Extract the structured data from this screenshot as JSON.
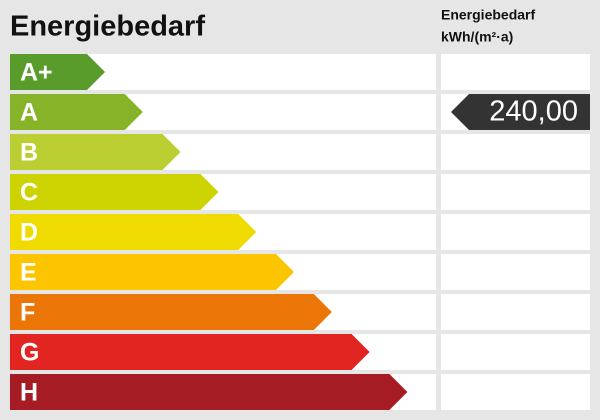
{
  "header": {
    "title": "Energiebedarf",
    "column_title": "Energiebedarf",
    "unit": "kWh/(m²·a)"
  },
  "classes": [
    {
      "label": "A+",
      "color": "#5a9c2c"
    },
    {
      "label": "A",
      "color": "#86b327",
      "value": "240,00"
    },
    {
      "label": "B",
      "color": "#bbcf33"
    },
    {
      "label": "C",
      "color": "#ccd300"
    },
    {
      "label": "D",
      "color": "#f0db00"
    },
    {
      "label": "E",
      "color": "#fcc500"
    },
    {
      "label": "F",
      "color": "#ec7508"
    },
    {
      "label": "G",
      "color": "#e32522"
    },
    {
      "label": "H",
      "color": "#a51c24"
    }
  ]
}
